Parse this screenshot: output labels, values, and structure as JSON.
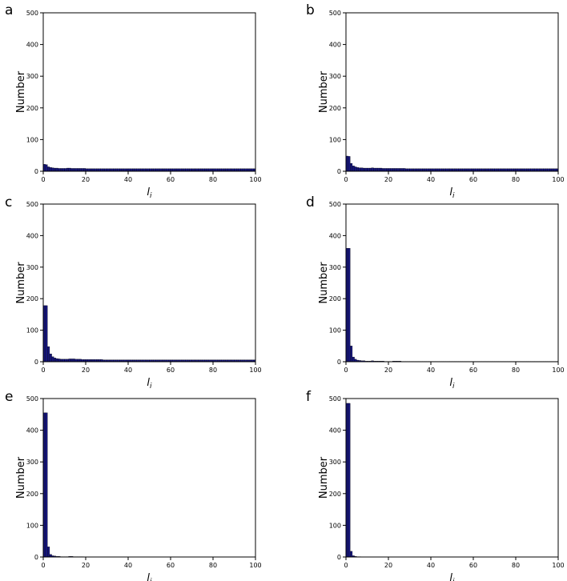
{
  "chart_data": [
    {
      "panel": "a",
      "type": "bar",
      "ylabel": "Number",
      "xlabel": "l",
      "xlabel_subscript": "i",
      "xlim": [
        0,
        100
      ],
      "ylim": [
        0,
        500
      ],
      "xticks": [
        0,
        20,
        40,
        60,
        80,
        100
      ],
      "yticks": [
        0,
        100,
        200,
        300,
        400,
        500
      ],
      "bar_color": "#15157a",
      "values": [
        22,
        21,
        14,
        12,
        11,
        10,
        10,
        9,
        9,
        9,
        9,
        10,
        10,
        9,
        9,
        9,
        9,
        9,
        9,
        9,
        8,
        8,
        8,
        8,
        8,
        8,
        8,
        8,
        8,
        8,
        8,
        8,
        8,
        8,
        8,
        8,
        8,
        8,
        8,
        8,
        8,
        8,
        8,
        8,
        8,
        8,
        8,
        8,
        8,
        8,
        8,
        8,
        8,
        8,
        8,
        8,
        8,
        8,
        8,
        8,
        8,
        8,
        8,
        8,
        8,
        8,
        8,
        8,
        8,
        8,
        8,
        8,
        8,
        8,
        8,
        8,
        8,
        8,
        8,
        8,
        8,
        8,
        8,
        8,
        8,
        8,
        8,
        8,
        8,
        8,
        8,
        8,
        8,
        8,
        8,
        8,
        8,
        8,
        8,
        8
      ]
    },
    {
      "panel": "b",
      "type": "bar",
      "ylabel": "Number",
      "xlabel": "l",
      "xlabel_subscript": "i",
      "xlim": [
        0,
        100
      ],
      "ylim": [
        0,
        500
      ],
      "xticks": [
        0,
        20,
        40,
        60,
        80,
        100
      ],
      "yticks": [
        0,
        100,
        200,
        300,
        400,
        500
      ],
      "bar_color": "#15157a",
      "values": [
        48,
        47,
        25,
        17,
        14,
        12,
        11,
        11,
        10,
        10,
        10,
        10,
        11,
        10,
        10,
        10,
        10,
        9,
        9,
        9,
        9,
        9,
        9,
        9,
        9,
        9,
        9,
        9,
        8,
        8,
        8,
        8,
        8,
        8,
        8,
        8,
        8,
        8,
        8,
        8,
        8,
        8,
        8,
        8,
        8,
        8,
        8,
        8,
        8,
        8,
        8,
        8,
        8,
        8,
        8,
        8,
        8,
        8,
        8,
        8,
        8,
        8,
        8,
        8,
        8,
        8,
        8,
        8,
        8,
        8,
        8,
        8,
        8,
        8,
        8,
        8,
        8,
        8,
        8,
        8,
        8,
        8,
        8,
        8,
        8,
        8,
        8,
        8,
        8,
        8,
        8,
        8,
        8,
        8,
        8,
        8,
        8,
        8,
        8,
        8
      ]
    },
    {
      "panel": "c",
      "type": "bar",
      "ylabel": "Number",
      "xlabel": "l",
      "xlabel_subscript": "i",
      "xlim": [
        0,
        100
      ],
      "ylim": [
        0,
        500
      ],
      "xticks": [
        0,
        20,
        40,
        60,
        80,
        100
      ],
      "yticks": [
        0,
        100,
        200,
        300,
        400,
        500
      ],
      "bar_color": "#15157a",
      "values": [
        178,
        178,
        48,
        25,
        16,
        12,
        10,
        9,
        8,
        8,
        8,
        8,
        9,
        9,
        9,
        8,
        8,
        8,
        7,
        7,
        7,
        7,
        7,
        7,
        7,
        7,
        7,
        7,
        6,
        6,
        6,
        6,
        6,
        6,
        6,
        6,
        6,
        6,
        6,
        6,
        6,
        6,
        6,
        6,
        6,
        6,
        6,
        6,
        6,
        6,
        6,
        6,
        6,
        6,
        6,
        6,
        6,
        6,
        6,
        6,
        6,
        6,
        6,
        6,
        6,
        6,
        6,
        6,
        6,
        6,
        6,
        6,
        6,
        6,
        6,
        6,
        6,
        6,
        6,
        6,
        6,
        6,
        6,
        6,
        6,
        6,
        6,
        6,
        6,
        6,
        6,
        6,
        6,
        6,
        6,
        6,
        6,
        6,
        6,
        6
      ]
    },
    {
      "panel": "d",
      "type": "bar",
      "ylabel": "Number",
      "xlabel": "l",
      "xlabel_subscript": "i",
      "xlim": [
        0,
        100
      ],
      "ylim": [
        0,
        500
      ],
      "xticks": [
        0,
        20,
        40,
        60,
        80,
        100
      ],
      "yticks": [
        0,
        100,
        200,
        300,
        400,
        500
      ],
      "bar_color": "#15157a",
      "values": [
        360,
        360,
        50,
        15,
        8,
        5,
        4,
        3,
        3,
        2,
        2,
        2,
        3,
        2,
        2,
        2,
        2,
        2,
        1,
        1,
        1,
        1,
        2,
        2,
        2,
        2,
        1,
        1,
        1,
        1,
        1,
        1,
        1,
        1,
        1,
        1,
        1,
        1,
        1,
        1,
        1,
        1,
        1,
        1,
        1,
        1,
        1,
        1,
        1,
        1,
        1,
        1,
        1,
        1,
        1,
        1,
        1,
        1,
        1,
        1,
        1,
        1,
        1,
        1,
        1,
        1,
        1,
        1,
        1,
        1,
        1,
        1,
        1,
        1,
        1,
        1,
        1,
        1,
        1,
        1,
        1,
        1,
        1,
        1,
        1,
        1,
        1,
        1,
        1,
        1,
        1,
        1,
        1,
        1,
        1,
        1,
        1,
        1,
        1,
        1
      ]
    },
    {
      "panel": "e",
      "type": "bar",
      "ylabel": "Number",
      "xlabel": "l",
      "xlabel_subscript": "i",
      "xlim": [
        0,
        100
      ],
      "ylim": [
        0,
        500
      ],
      "xticks": [
        0,
        20,
        40,
        60,
        80,
        100
      ],
      "yticks": [
        0,
        100,
        200,
        300,
        400,
        500
      ],
      "bar_color": "#15157a",
      "values": [
        455,
        455,
        32,
        8,
        4,
        3,
        2,
        2,
        1,
        1,
        1,
        1,
        2,
        2,
        1,
        1,
        1,
        1,
        1,
        0,
        0,
        0,
        0,
        0,
        0,
        0,
        0,
        0,
        0,
        0,
        0,
        0,
        0,
        0,
        0,
        0,
        0,
        0,
        0,
        0,
        0,
        0,
        0,
        0,
        0,
        0,
        0,
        0,
        0,
        0,
        0,
        0,
        0,
        0,
        0,
        0,
        0,
        0,
        0,
        0,
        0,
        0,
        0,
        0,
        0,
        0,
        0,
        0,
        0,
        0,
        0,
        0,
        0,
        0,
        0,
        0,
        0,
        0,
        0,
        0,
        0,
        0,
        0,
        0,
        0,
        0,
        0,
        0,
        0,
        0,
        0,
        0,
        0,
        0,
        0,
        0,
        0,
        0,
        0,
        0
      ]
    },
    {
      "panel": "f",
      "type": "bar",
      "ylabel": "Number",
      "xlabel": "l",
      "xlabel_subscript": "i",
      "xlim": [
        0,
        100
      ],
      "ylim": [
        0,
        500
      ],
      "xticks": [
        0,
        20,
        40,
        60,
        80,
        100
      ],
      "yticks": [
        0,
        100,
        200,
        300,
        400,
        500
      ],
      "bar_color": "#15157a",
      "values": [
        485,
        485,
        18,
        4,
        2,
        1,
        1,
        0,
        0,
        0,
        0,
        0,
        0,
        0,
        0,
        0,
        0,
        0,
        0,
        0,
        0,
        0,
        0,
        0,
        0,
        0,
        0,
        0,
        0,
        0,
        0,
        0,
        0,
        0,
        0,
        0,
        0,
        0,
        0,
        0,
        0,
        0,
        0,
        0,
        0,
        0,
        0,
        0,
        0,
        0,
        0,
        0,
        0,
        0,
        0,
        0,
        0,
        0,
        0,
        0,
        0,
        0,
        0,
        0,
        0,
        0,
        0,
        0,
        0,
        0,
        0,
        0,
        0,
        0,
        0,
        0,
        0,
        0,
        0,
        0,
        0,
        0,
        0,
        0,
        0,
        0,
        0,
        0,
        0,
        0,
        0,
        0,
        0,
        0,
        0,
        0,
        0,
        0,
        0,
        0
      ]
    }
  ]
}
